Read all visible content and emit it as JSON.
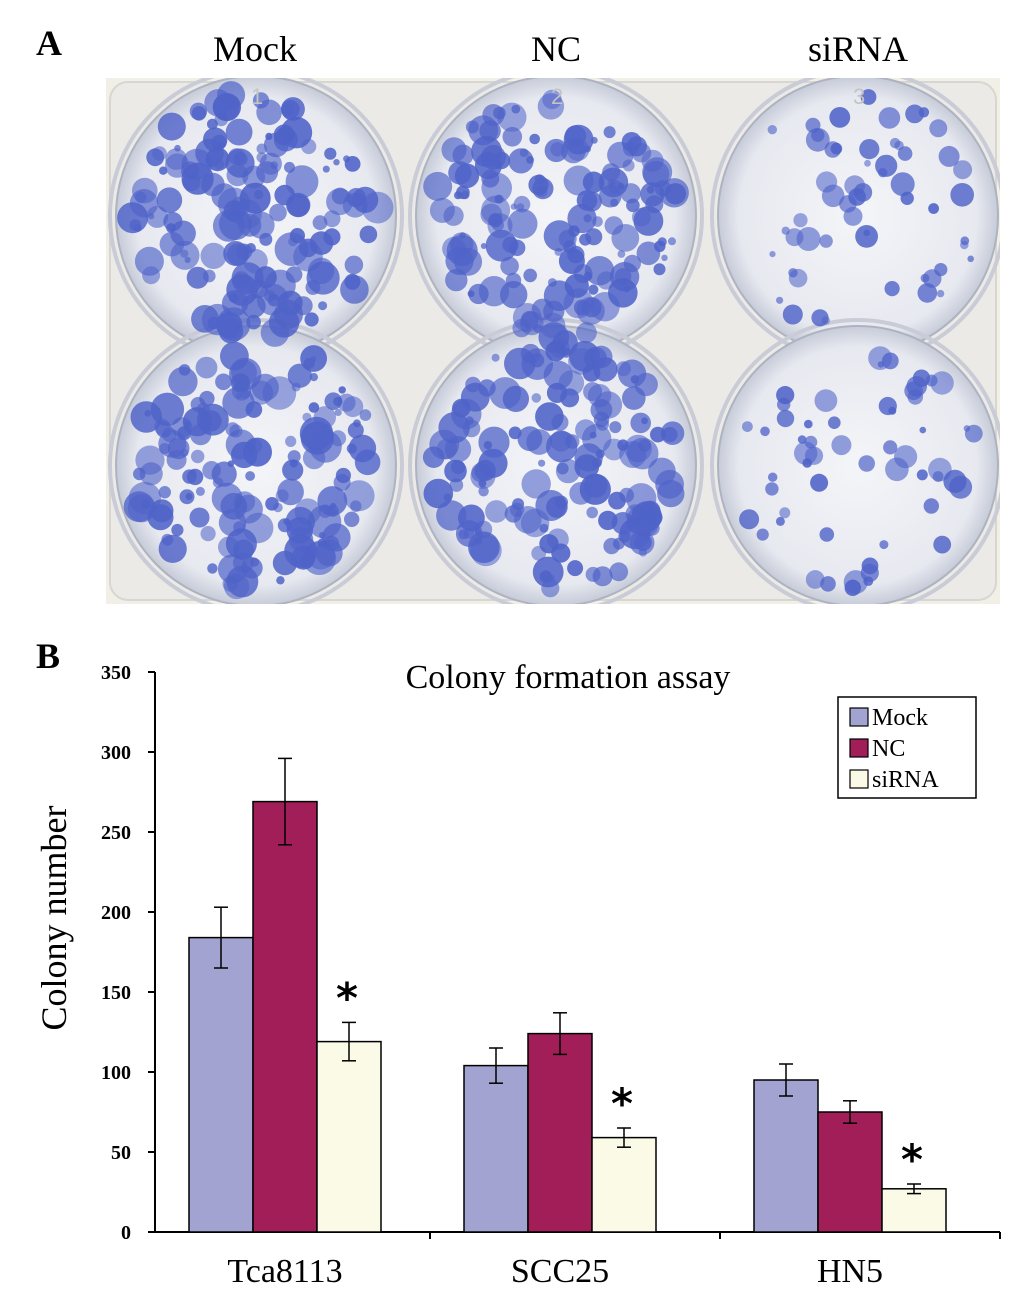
{
  "panel_a": {
    "letter": "A",
    "column_labels": [
      "Mock",
      "NC",
      "siRNA"
    ],
    "well_numbers": [
      "1",
      "2",
      "3"
    ],
    "colors": {
      "stain": "#4f63c8",
      "plate": "#dfe3ee",
      "background": "#f2efe6"
    }
  },
  "panel_b": {
    "letter": "B"
  },
  "chart_data": {
    "type": "bar",
    "title": "Colony formation assay",
    "xlabel": "",
    "ylabel": "Colony number",
    "ylim": [
      0,
      350
    ],
    "yticks": [
      "0",
      "50",
      "100",
      "150",
      "200",
      "250",
      "300",
      "350"
    ],
    "categories": [
      "Tca8113",
      "SCC25",
      "HN5"
    ],
    "series": [
      {
        "name": "Mock",
        "color": "#a3a3d1",
        "values": [
          184,
          104,
          95
        ],
        "errors": [
          19,
          11,
          10
        ]
      },
      {
        "name": "NC",
        "color": "#a21e58",
        "values": [
          269,
          124,
          75
        ],
        "errors": [
          27,
          13,
          7
        ]
      },
      {
        "name": "siRNA",
        "color": "#fafae6",
        "values": [
          119,
          59,
          27
        ],
        "errors": [
          12,
          6,
          3
        ]
      }
    ],
    "significance_marker": "*",
    "significance_series": "siRNA",
    "legend_position": "top-right",
    "grid": false
  }
}
